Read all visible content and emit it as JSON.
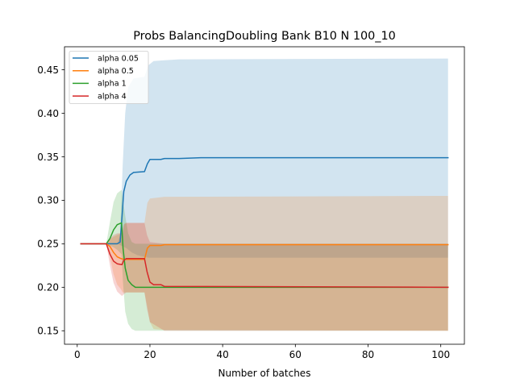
{
  "chart_data": {
    "type": "line",
    "title": "Probs BalancingDoubling Bank B10 N 100_10",
    "xlabel": "Number of batches",
    "ylabel": "",
    "xlim": [
      -3.5,
      106.5
    ],
    "ylim": [
      0.1345,
      0.4765
    ],
    "xticks": [
      0,
      20,
      40,
      60,
      80,
      100
    ],
    "xtick_labels": [
      "0",
      "20",
      "40",
      "60",
      "80",
      "100"
    ],
    "yticks": [
      0.15,
      0.2,
      0.25,
      0.3,
      0.35,
      0.4,
      0.45
    ],
    "ytick_labels": [
      "0.15",
      "0.20",
      "0.25",
      "0.30",
      "0.35",
      "0.40",
      "0.45"
    ],
    "grid": false,
    "legend_position": "top-left",
    "series": [
      {
        "name": "alpha 0.05",
        "color": "#1f77b4",
        "mean": [
          [
            1,
            0.25
          ],
          [
            8,
            0.25
          ],
          [
            11,
            0.25
          ],
          [
            11.8,
            0.252
          ],
          [
            12.3,
            0.28
          ],
          [
            12.8,
            0.31
          ],
          [
            13.5,
            0.322
          ],
          [
            14.5,
            0.329
          ],
          [
            15.5,
            0.332
          ],
          [
            18.5,
            0.333
          ],
          [
            19.3,
            0.342
          ],
          [
            20,
            0.347
          ],
          [
            23,
            0.347
          ],
          [
            24,
            0.348
          ],
          [
            28,
            0.348
          ],
          [
            34,
            0.349
          ],
          [
            102,
            0.349
          ]
        ],
        "upper": [
          [
            1,
            0.25
          ],
          [
            8,
            0.25
          ],
          [
            11,
            0.25
          ],
          [
            11.8,
            0.26
          ],
          [
            12.5,
            0.34
          ],
          [
            13.2,
            0.4
          ],
          [
            14,
            0.43
          ],
          [
            15.5,
            0.44
          ],
          [
            18.5,
            0.442
          ],
          [
            19.5,
            0.455
          ],
          [
            21,
            0.46
          ],
          [
            24,
            0.461
          ],
          [
            28,
            0.462
          ],
          [
            102,
            0.463
          ]
        ],
        "lower": [
          [
            1,
            0.25
          ],
          [
            8,
            0.25
          ],
          [
            11,
            0.25
          ],
          [
            12,
            0.248
          ],
          [
            13.5,
            0.245
          ],
          [
            15,
            0.24
          ],
          [
            16.5,
            0.237
          ],
          [
            18.5,
            0.235
          ],
          [
            19.5,
            0.234
          ],
          [
            22,
            0.234
          ],
          [
            102,
            0.234
          ]
        ]
      },
      {
        "name": "alpha 0.5",
        "color": "#ff7f0e",
        "mean": [
          [
            1,
            0.25
          ],
          [
            8,
            0.25
          ],
          [
            9,
            0.247
          ],
          [
            10,
            0.24
          ],
          [
            11,
            0.235
          ],
          [
            12,
            0.233
          ],
          [
            13,
            0.232
          ],
          [
            18.5,
            0.232
          ],
          [
            19.3,
            0.245
          ],
          [
            20,
            0.248
          ],
          [
            23,
            0.248
          ],
          [
            24,
            0.249
          ],
          [
            102,
            0.249
          ]
        ],
        "upper": [
          [
            1,
            0.25
          ],
          [
            8,
            0.25
          ],
          [
            9,
            0.255
          ],
          [
            10,
            0.258
          ],
          [
            11,
            0.26
          ],
          [
            12,
            0.262
          ],
          [
            12.5,
            0.263
          ],
          [
            13,
            0.274
          ],
          [
            18.5,
            0.274
          ],
          [
            19.3,
            0.297
          ],
          [
            20,
            0.302
          ],
          [
            24,
            0.304
          ],
          [
            102,
            0.305
          ]
        ],
        "lower": [
          [
            1,
            0.25
          ],
          [
            8,
            0.25
          ],
          [
            9,
            0.235
          ],
          [
            10,
            0.215
          ],
          [
            11,
            0.203
          ],
          [
            12,
            0.198
          ],
          [
            12.5,
            0.194
          ],
          [
            18.5,
            0.194
          ],
          [
            19.3,
            0.177
          ],
          [
            20,
            0.16
          ],
          [
            21,
            0.152
          ],
          [
            24,
            0.151
          ],
          [
            102,
            0.15
          ]
        ]
      },
      {
        "name": "alpha 1",
        "color": "#2ca02c",
        "mean": [
          [
            1,
            0.25
          ],
          [
            8,
            0.25
          ],
          [
            9,
            0.256
          ],
          [
            10,
            0.266
          ],
          [
            11,
            0.272
          ],
          [
            12.2,
            0.274
          ],
          [
            12.6,
            0.245
          ],
          [
            13.2,
            0.222
          ],
          [
            14,
            0.208
          ],
          [
            15,
            0.203
          ],
          [
            16,
            0.2
          ],
          [
            102,
            0.2
          ]
        ],
        "upper": [
          [
            1,
            0.25
          ],
          [
            8,
            0.25
          ],
          [
            9,
            0.275
          ],
          [
            10,
            0.298
          ],
          [
            11,
            0.308
          ],
          [
            12.2,
            0.312
          ],
          [
            12.6,
            0.3
          ],
          [
            13.2,
            0.282
          ],
          [
            14,
            0.262
          ],
          [
            15,
            0.252
          ],
          [
            16,
            0.25
          ],
          [
            102,
            0.25
          ]
        ],
        "lower": [
          [
            1,
            0.25
          ],
          [
            8,
            0.25
          ],
          [
            9,
            0.248
          ],
          [
            10,
            0.246
          ],
          [
            11,
            0.243
          ],
          [
            12.2,
            0.238
          ],
          [
            12.6,
            0.205
          ],
          [
            13.2,
            0.172
          ],
          [
            14,
            0.158
          ],
          [
            15,
            0.152
          ],
          [
            16,
            0.15
          ],
          [
            102,
            0.15
          ]
        ]
      },
      {
        "name": "alpha 4",
        "color": "#d62728",
        "mean": [
          [
            1,
            0.25
          ],
          [
            8,
            0.25
          ],
          [
            9,
            0.238
          ],
          [
            10,
            0.23
          ],
          [
            11,
            0.227
          ],
          [
            12.3,
            0.226
          ],
          [
            12.8,
            0.231
          ],
          [
            13.5,
            0.233
          ],
          [
            18.5,
            0.233
          ],
          [
            19.2,
            0.218
          ],
          [
            20,
            0.206
          ],
          [
            21,
            0.203
          ],
          [
            23,
            0.203
          ],
          [
            24,
            0.201
          ],
          [
            102,
            0.2
          ]
        ],
        "upper": [
          [
            1,
            0.25
          ],
          [
            8,
            0.25
          ],
          [
            9,
            0.256
          ],
          [
            10,
            0.26
          ],
          [
            11,
            0.262
          ],
          [
            12.3,
            0.262
          ],
          [
            12.8,
            0.272
          ],
          [
            13.5,
            0.274
          ],
          [
            18.5,
            0.274
          ],
          [
            19.2,
            0.26
          ],
          [
            20,
            0.252
          ],
          [
            24,
            0.25
          ],
          [
            102,
            0.25
          ]
        ],
        "lower": [
          [
            1,
            0.25
          ],
          [
            8,
            0.25
          ],
          [
            9,
            0.225
          ],
          [
            10,
            0.205
          ],
          [
            11,
            0.195
          ],
          [
            12.3,
            0.19
          ],
          [
            12.8,
            0.192
          ],
          [
            13.5,
            0.194
          ],
          [
            18.5,
            0.194
          ],
          [
            19.2,
            0.175
          ],
          [
            20,
            0.16
          ],
          [
            24,
            0.15
          ],
          [
            102,
            0.15
          ]
        ]
      }
    ]
  }
}
